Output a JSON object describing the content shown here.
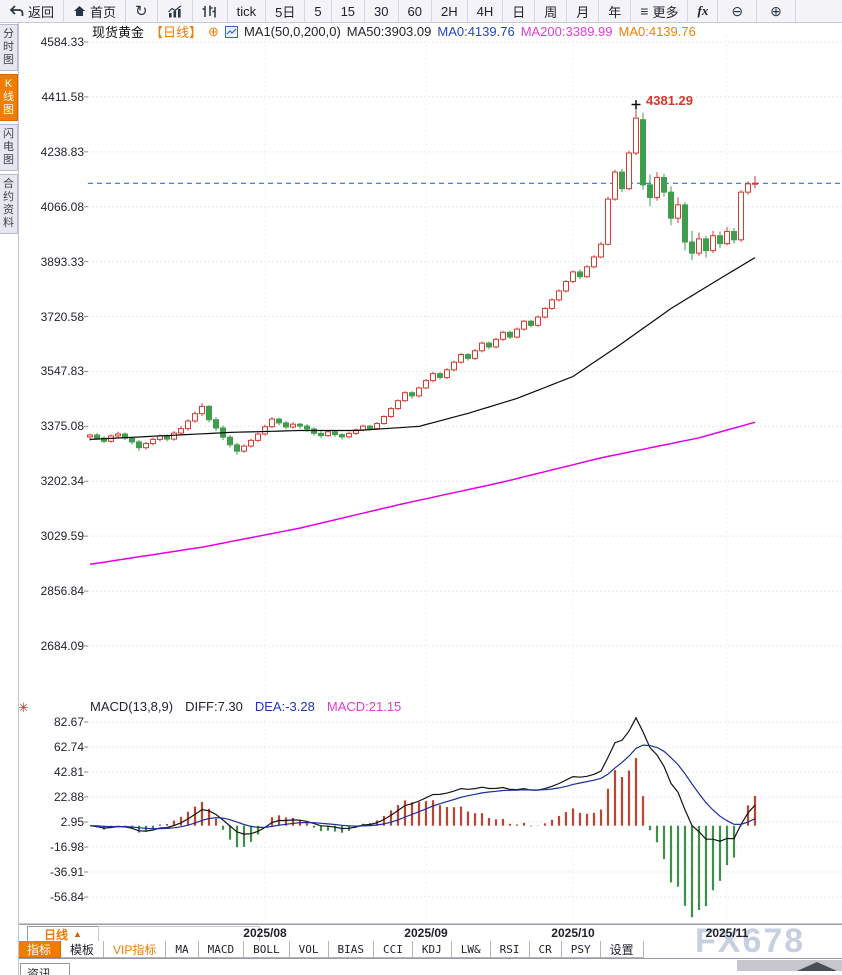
{
  "toolbar": {
    "items": [
      {
        "id": "back-button",
        "icon": "back",
        "label": "返回"
      },
      {
        "id": "home-button",
        "icon": "home",
        "label": "首页"
      },
      {
        "id": "refresh-button",
        "icon": "refresh"
      },
      {
        "id": "line-chart-style-button",
        "icon": "bar-chart"
      },
      {
        "id": "candle-style-button",
        "icon": "candles"
      },
      {
        "id": "period-tick",
        "label": "tick"
      },
      {
        "id": "period-5d",
        "label": "5日"
      },
      {
        "id": "period-5",
        "label": "5"
      },
      {
        "id": "period-15",
        "label": "15"
      },
      {
        "id": "period-30",
        "label": "30"
      },
      {
        "id": "period-60",
        "label": "60"
      },
      {
        "id": "period-2h",
        "label": "2H"
      },
      {
        "id": "period-4h",
        "label": "4H"
      },
      {
        "id": "period-day",
        "label": "日"
      },
      {
        "id": "period-week",
        "label": "周"
      },
      {
        "id": "period-month",
        "label": "月"
      },
      {
        "id": "period-year",
        "label": "年"
      },
      {
        "id": "more-button",
        "icon": "menu",
        "label": "更多"
      },
      {
        "id": "formula-button",
        "label": "fx",
        "cls": "fx"
      },
      {
        "id": "zoom-out-button",
        "icon": "zoom-out",
        "cls": "glass"
      },
      {
        "id": "zoom-in-button",
        "icon": "zoom-in",
        "cls": "glass"
      }
    ]
  },
  "sidebar": {
    "tabs": [
      {
        "id": "fenshi",
        "label": "分时图",
        "active": false
      },
      {
        "id": "kline",
        "label": "K线图",
        "active": true
      },
      {
        "id": "flash",
        "label": "闪电图",
        "active": false
      },
      {
        "id": "contract",
        "label": "合约资料",
        "active": false
      }
    ]
  },
  "chart_header": {
    "symbol": "现货黄金",
    "period_tag": "【日线】",
    "add_icon": "⊕",
    "ma_settings": "MA1(50,0,200,0)",
    "ma50_label": "MA50:3903.09",
    "ma0_blue": "MA0:4139.76",
    "ma200_label": "MA200:3389.99",
    "ma0_orange": "MA0:4139.76"
  },
  "chart_data": [
    {
      "type": "candlestick",
      "title": "现货黄金 日线 (Spot Gold Daily)",
      "ylim": [
        2684.09,
        4584.33
      ],
      "grid": "dotted",
      "y_ticks": [
        4584.33,
        4411.58,
        4238.83,
        4066.08,
        3893.33,
        3720.58,
        3547.83,
        3375.08,
        3202.34,
        3029.59,
        2856.84,
        2684.09
      ],
      "x_ticks": [
        {
          "label": "2025/08",
          "index": 25
        },
        {
          "label": "2025/09",
          "index": 48
        },
        {
          "label": "2025/10",
          "index": 69
        },
        {
          "label": "2025/11",
          "index": 91
        }
      ],
      "current_price": 4139.76,
      "peak_annotation": {
        "value": "4381.29",
        "index": 78,
        "price": 4381.29
      },
      "colors": {
        "up": "#d93a30",
        "down": "#3f9e4d",
        "ma50": "#0a0a0a",
        "ma200": "#e400e4",
        "price_line": "#2677d9"
      },
      "overlays": {
        "ma50": {
          "name": "MA50",
          "last": 3903.09,
          "points": [
            [
              0,
              3334
            ],
            [
              9,
              3344
            ],
            [
              20,
              3356
            ],
            [
              30,
              3362
            ],
            [
              38,
              3362
            ],
            [
              47,
              3375
            ],
            [
              54,
              3416
            ],
            [
              61,
              3463
            ],
            [
              69,
              3532
            ],
            [
              76,
              3636
            ],
            [
              83,
              3746
            ],
            [
              90,
              3840
            ],
            [
              95,
              3906
            ]
          ]
        },
        "ma200": {
          "name": "MA200",
          "last": 3389.99,
          "points": [
            [
              0,
              2941
            ],
            [
              16,
              2995
            ],
            [
              30,
              3055
            ],
            [
              44,
              3128
            ],
            [
              59,
              3200
            ],
            [
              73,
              3276
            ],
            [
              87,
              3339
            ],
            [
              95,
              3388
            ]
          ]
        }
      },
      "candles": [
        [
          3342,
          3352,
          3330,
          3348
        ],
        [
          3348,
          3354,
          3334,
          3338
        ],
        [
          3338,
          3344,
          3322,
          3328
        ],
        [
          3328,
          3350,
          3324,
          3345
        ],
        [
          3345,
          3358,
          3340,
          3351
        ],
        [
          3351,
          3356,
          3332,
          3338
        ],
        [
          3338,
          3342,
          3318,
          3326
        ],
        [
          3326,
          3332,
          3298,
          3308
        ],
        [
          3308,
          3326,
          3302,
          3321
        ],
        [
          3321,
          3340,
          3315,
          3334
        ],
        [
          3334,
          3350,
          3328,
          3345
        ],
        [
          3345,
          3350,
          3328,
          3335
        ],
        [
          3335,
          3360,
          3330,
          3354
        ],
        [
          3354,
          3376,
          3348,
          3368
        ],
        [
          3368,
          3398,
          3362,
          3392
        ],
        [
          3392,
          3422,
          3386,
          3415
        ],
        [
          3415,
          3448,
          3408,
          3438
        ],
        [
          3438,
          3442,
          3388,
          3396
        ],
        [
          3396,
          3404,
          3360,
          3370
        ],
        [
          3370,
          3378,
          3332,
          3341
        ],
        [
          3341,
          3348,
          3308,
          3317
        ],
        [
          3317,
          3324,
          3286,
          3297
        ],
        [
          3297,
          3318,
          3292,
          3313
        ],
        [
          3313,
          3336,
          3308,
          3331
        ],
        [
          3331,
          3356,
          3326,
          3351
        ],
        [
          3351,
          3380,
          3346,
          3374
        ],
        [
          3374,
          3404,
          3370,
          3398
        ],
        [
          3398,
          3402,
          3378,
          3386
        ],
        [
          3386,
          3392,
          3366,
          3373
        ],
        [
          3373,
          3388,
          3368,
          3382
        ],
        [
          3382,
          3386,
          3368,
          3376
        ],
        [
          3376,
          3382,
          3358,
          3367
        ],
        [
          3367,
          3372,
          3346,
          3353
        ],
        [
          3353,
          3360,
          3338,
          3346
        ],
        [
          3346,
          3364,
          3342,
          3358
        ],
        [
          3358,
          3362,
          3342,
          3349
        ],
        [
          3349,
          3354,
          3334,
          3342
        ],
        [
          3342,
          3358,
          3338,
          3353
        ],
        [
          3353,
          3368,
          3348,
          3364
        ],
        [
          3364,
          3380,
          3360,
          3376
        ],
        [
          3376,
          3380,
          3362,
          3368
        ],
        [
          3368,
          3388,
          3364,
          3384
        ],
        [
          3384,
          3410,
          3380,
          3406
        ],
        [
          3406,
          3436,
          3402,
          3431
        ],
        [
          3431,
          3460,
          3426,
          3456
        ],
        [
          3456,
          3486,
          3452,
          3481
        ],
        [
          3481,
          3486,
          3462,
          3471
        ],
        [
          3471,
          3500,
          3466,
          3496
        ],
        [
          3496,
          3524,
          3492,
          3519
        ],
        [
          3519,
          3546,
          3514,
          3541
        ],
        [
          3541,
          3546,
          3522,
          3529
        ],
        [
          3529,
          3558,
          3524,
          3553
        ],
        [
          3553,
          3582,
          3548,
          3577
        ],
        [
          3577,
          3606,
          3572,
          3601
        ],
        [
          3601,
          3606,
          3582,
          3589
        ],
        [
          3589,
          3618,
          3584,
          3613
        ],
        [
          3613,
          3642,
          3608,
          3637
        ],
        [
          3637,
          3642,
          3618,
          3625
        ],
        [
          3625,
          3654,
          3620,
          3649
        ],
        [
          3649,
          3676,
          3644,
          3671
        ],
        [
          3671,
          3676,
          3650,
          3656
        ],
        [
          3656,
          3686,
          3652,
          3681
        ],
        [
          3681,
          3710,
          3676,
          3706
        ],
        [
          3706,
          3710,
          3686,
          3693
        ],
        [
          3693,
          3724,
          3688,
          3719
        ],
        [
          3719,
          3750,
          3714,
          3746
        ],
        [
          3746,
          3778,
          3742,
          3773
        ],
        [
          3773,
          3806,
          3768,
          3801
        ],
        [
          3801,
          3836,
          3796,
          3831
        ],
        [
          3831,
          3866,
          3826,
          3861
        ],
        [
          3861,
          3868,
          3838,
          3846
        ],
        [
          3846,
          3882,
          3842,
          3877
        ],
        [
          3877,
          3914,
          3872,
          3908
        ],
        [
          3908,
          3955,
          3904,
          3948
        ],
        [
          3948,
          4098,
          3944,
          4090
        ],
        [
          4090,
          4182,
          4085,
          4175
        ],
        [
          4175,
          4186,
          4112,
          4123
        ],
        [
          4123,
          4242,
          4118,
          4235
        ],
        [
          4235,
          4381.29,
          4228,
          4345
        ],
        [
          4340,
          4362,
          4120,
          4135
        ],
        [
          4135,
          4168,
          4068,
          4095
        ],
        [
          4095,
          4175,
          4085,
          4158
        ],
        [
          4158,
          4170,
          4098,
          4112
        ],
        [
          4112,
          4130,
          4008,
          4030
        ],
        [
          4030,
          4095,
          4015,
          4072
        ],
        [
          4072,
          4080,
          3928,
          3955
        ],
        [
          3955,
          3990,
          3898,
          3920
        ],
        [
          3920,
          3985,
          3912,
          3965
        ],
        [
          3965,
          3975,
          3906,
          3928
        ],
        [
          3928,
          3990,
          3920,
          3975
        ],
        [
          3975,
          3988,
          3936,
          3950
        ],
        [
          3950,
          4002,
          3944,
          3988
        ],
        [
          3988,
          3999,
          3950,
          3962
        ],
        [
          3962,
          4118,
          3956,
          4112
        ],
        [
          4112,
          4146,
          4104,
          4138
        ],
        [
          4138,
          4163,
          4124,
          4140
        ]
      ]
    },
    {
      "type": "macd",
      "name": "MACD(13,8,9)",
      "params": [
        13,
        8,
        9
      ],
      "diff": 7.3,
      "dea": -3.28,
      "macd": 21.15,
      "y_ticks": [
        82.67,
        62.74,
        42.81,
        22.88,
        2.95,
        -16.98,
        -36.91,
        -56.84
      ],
      "derived_from": "candlestick closes",
      "colors": {
        "diff_line": "#141414",
        "dea_line": "#1a2f9e",
        "bar_up": "#bb4433",
        "bar_down": "#3d8f4a"
      }
    }
  ],
  "macd_header": {
    "name": "MACD(13,8,9)",
    "diff_label": "DIFF:7.30",
    "dea_label": "DEA:-3.28",
    "macd_label": "MACD:21.15",
    "icon": "✳"
  },
  "bottom": {
    "period_label": "日线",
    "period_arrow": "▲",
    "indicator_tabs": [
      {
        "id": "zhibiao",
        "label": "指标",
        "style": "sel"
      },
      {
        "id": "moban",
        "label": "模板",
        "style": ""
      },
      {
        "id": "vip",
        "label": "VIP指标",
        "style": "vip"
      },
      {
        "id": "ma",
        "label": "MA",
        "style": "latin"
      },
      {
        "id": "macd",
        "label": "MACD",
        "style": "latin"
      },
      {
        "id": "boll",
        "label": "BOLL",
        "style": "latin"
      },
      {
        "id": "vol",
        "label": "VOL",
        "style": "latin"
      },
      {
        "id": "bias",
        "label": "BIAS",
        "style": "latin"
      },
      {
        "id": "cci",
        "label": "CCI",
        "style": "latin"
      },
      {
        "id": "kdj",
        "label": "KDJ",
        "style": "latin"
      },
      {
        "id": "lw",
        "label": "LW&",
        "style": "latin"
      },
      {
        "id": "rsi",
        "label": "RSI",
        "style": "latin"
      },
      {
        "id": "cr",
        "label": "CR",
        "style": "latin"
      },
      {
        "id": "psy",
        "label": "PSY",
        "style": "latin"
      },
      {
        "id": "shezhi",
        "label": "设置",
        "style": ""
      }
    ],
    "news_tab": "资讯"
  },
  "watermark": "FX678",
  "accent_colors": {
    "orange": "#f07c00",
    "up_red": "#d93a30",
    "down_green": "#3f9e4d",
    "dashed_blue": "#2677d9",
    "magenta": "#e400e4"
  }
}
